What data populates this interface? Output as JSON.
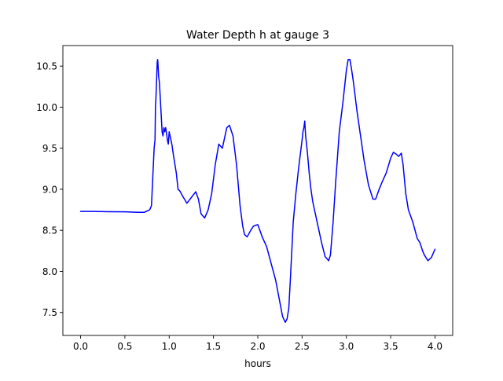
{
  "chart_data": {
    "type": "line",
    "title": "Water Depth h at gauge 3",
    "xlabel": "hours",
    "ylabel": "",
    "xlim": [
      -0.2,
      4.2
    ],
    "ylim": [
      7.22,
      10.75
    ],
    "xticks": [
      0.0,
      0.5,
      1.0,
      1.5,
      2.0,
      2.5,
      3.0,
      3.5,
      4.0
    ],
    "xtick_labels": [
      "0.0",
      "0.5",
      "1.0",
      "1.5",
      "2.0",
      "2.5",
      "3.0",
      "3.5",
      "4.0"
    ],
    "yticks": [
      7.5,
      8.0,
      8.5,
      9.0,
      9.5,
      10.0,
      10.5
    ],
    "ytick_labels": [
      "7.5",
      "8.0",
      "8.5",
      "9.0",
      "9.5",
      "10.0",
      "10.5"
    ],
    "grid": false,
    "colors": {
      "series": "#0000ff",
      "axes": "#000000",
      "background": "#ffffff"
    },
    "series": [
      {
        "x": [
          0.0,
          0.1,
          0.15,
          0.3,
          0.5,
          0.65,
          0.72,
          0.78,
          0.8,
          0.83,
          0.84,
          0.845,
          0.85,
          0.86,
          0.865,
          0.87,
          0.875,
          0.88,
          0.89,
          0.9,
          0.91,
          0.92,
          0.93,
          0.94,
          0.95,
          0.96,
          0.97,
          0.98,
          0.99,
          1.0,
          1.01,
          1.02,
          1.03,
          1.05,
          1.08,
          1.1,
          1.12,
          1.15,
          1.2,
          1.25,
          1.3,
          1.33,
          1.36,
          1.4,
          1.44,
          1.48,
          1.52,
          1.56,
          1.6,
          1.65,
          1.68,
          1.72,
          1.76,
          1.8,
          1.83,
          1.85,
          1.88,
          1.92,
          1.95,
          2.0,
          2.05,
          2.1,
          2.15,
          2.2,
          2.25,
          2.28,
          2.31,
          2.33,
          2.35,
          2.37,
          2.4,
          2.43,
          2.46,
          2.5,
          2.51,
          2.52,
          2.53,
          2.54,
          2.55,
          2.56,
          2.58,
          2.6,
          2.62,
          2.65,
          2.68,
          2.72,
          2.76,
          2.8,
          2.82,
          2.85,
          2.88,
          2.92,
          2.96,
          3.0,
          3.02,
          3.04,
          3.06,
          3.08,
          3.12,
          3.16,
          3.2,
          3.25,
          3.3,
          3.33,
          3.37,
          3.4,
          3.45,
          3.5,
          3.53,
          3.56,
          3.59,
          3.62,
          3.64,
          3.67,
          3.7,
          3.75,
          3.8,
          3.83,
          3.86,
          3.88,
          3.92,
          3.96,
          4.0
        ],
        "y": [
          8.73,
          8.73,
          8.73,
          8.727,
          8.725,
          8.72,
          8.72,
          8.75,
          8.8,
          9.5,
          9.6,
          10.0,
          10.1,
          10.4,
          10.55,
          10.58,
          10.5,
          10.38,
          10.3,
          10.1,
          9.9,
          9.7,
          9.65,
          9.75,
          9.7,
          9.75,
          9.68,
          9.6,
          9.55,
          9.7,
          9.65,
          9.6,
          9.55,
          9.4,
          9.2,
          9.0,
          8.98,
          8.92,
          8.83,
          8.9,
          8.97,
          8.88,
          8.7,
          8.65,
          8.75,
          8.95,
          9.3,
          9.55,
          9.5,
          9.75,
          9.78,
          9.65,
          9.3,
          8.8,
          8.55,
          8.45,
          8.42,
          8.5,
          8.55,
          8.57,
          8.42,
          8.3,
          8.1,
          7.9,
          7.62,
          7.45,
          7.38,
          7.42,
          7.55,
          7.95,
          8.6,
          8.95,
          9.25,
          9.6,
          9.7,
          9.75,
          9.83,
          9.65,
          9.55,
          9.45,
          9.2,
          9.0,
          8.85,
          8.7,
          8.55,
          8.35,
          8.18,
          8.13,
          8.2,
          8.6,
          9.1,
          9.7,
          10.05,
          10.45,
          10.58,
          10.58,
          10.45,
          10.3,
          9.95,
          9.65,
          9.35,
          9.05,
          8.88,
          8.88,
          9.0,
          9.08,
          9.2,
          9.38,
          9.45,
          9.43,
          9.4,
          9.44,
          9.3,
          8.95,
          8.75,
          8.6,
          8.4,
          8.35,
          8.25,
          8.2,
          8.13,
          8.17,
          8.27
        ]
      }
    ]
  }
}
